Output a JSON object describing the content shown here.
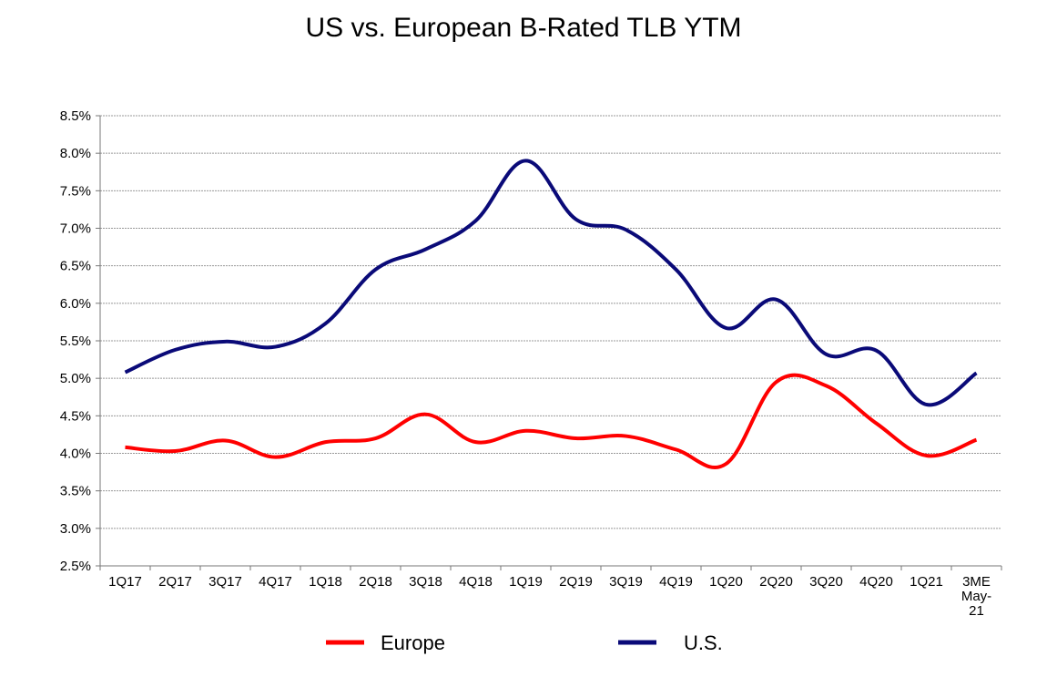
{
  "chart_data": {
    "type": "line",
    "title": "US vs. European B-Rated TLB YTM",
    "xlabel": "",
    "ylabel": "",
    "categories": [
      "1Q17",
      "2Q17",
      "3Q17",
      "4Q17",
      "1Q18",
      "2Q18",
      "3Q18",
      "4Q18",
      "1Q19",
      "2Q19",
      "3Q19",
      "4Q19",
      "1Q20",
      "2Q20",
      "3Q20",
      "4Q20",
      "1Q21",
      "3ME May-21"
    ],
    "category_lines": [
      [
        "1Q17"
      ],
      [
        "2Q17"
      ],
      [
        "3Q17"
      ],
      [
        "4Q17"
      ],
      [
        "1Q18"
      ],
      [
        "2Q18"
      ],
      [
        "3Q18"
      ],
      [
        "4Q18"
      ],
      [
        "1Q19"
      ],
      [
        "2Q19"
      ],
      [
        "3Q19"
      ],
      [
        "4Q19"
      ],
      [
        "1Q20"
      ],
      [
        "2Q20"
      ],
      [
        "3Q20"
      ],
      [
        "4Q20"
      ],
      [
        "1Q21"
      ],
      [
        "3ME",
        "May-",
        "21"
      ]
    ],
    "ylim": [
      2.5,
      8.5
    ],
    "yticks": [
      2.5,
      3.0,
      3.5,
      4.0,
      4.5,
      5.0,
      5.5,
      6.0,
      6.5,
      7.0,
      7.5,
      8.0,
      8.5
    ],
    "ytick_labels": [
      "2.5%",
      "3.0%",
      "3.5%",
      "4.0%",
      "4.5%",
      "5.0%",
      "5.5%",
      "6.0%",
      "6.5%",
      "7.0%",
      "7.5%",
      "8.0%",
      "8.5%"
    ],
    "grid": true,
    "legend_position": "bottom",
    "series": [
      {
        "name": "Europe",
        "color": "#ff0000",
        "values": [
          4.08,
          4.03,
          4.17,
          3.95,
          4.15,
          4.2,
          4.52,
          4.15,
          4.3,
          4.2,
          4.23,
          4.05,
          3.86,
          4.95,
          4.9,
          4.4,
          3.97,
          4.18
        ]
      },
      {
        "name": "U.S.",
        "color": "#0a0a78",
        "values": [
          5.08,
          5.38,
          5.49,
          5.42,
          5.73,
          6.45,
          6.72,
          7.1,
          7.9,
          7.12,
          6.98,
          6.45,
          5.67,
          6.05,
          5.32,
          5.37,
          4.65,
          5.07
        ]
      }
    ]
  }
}
